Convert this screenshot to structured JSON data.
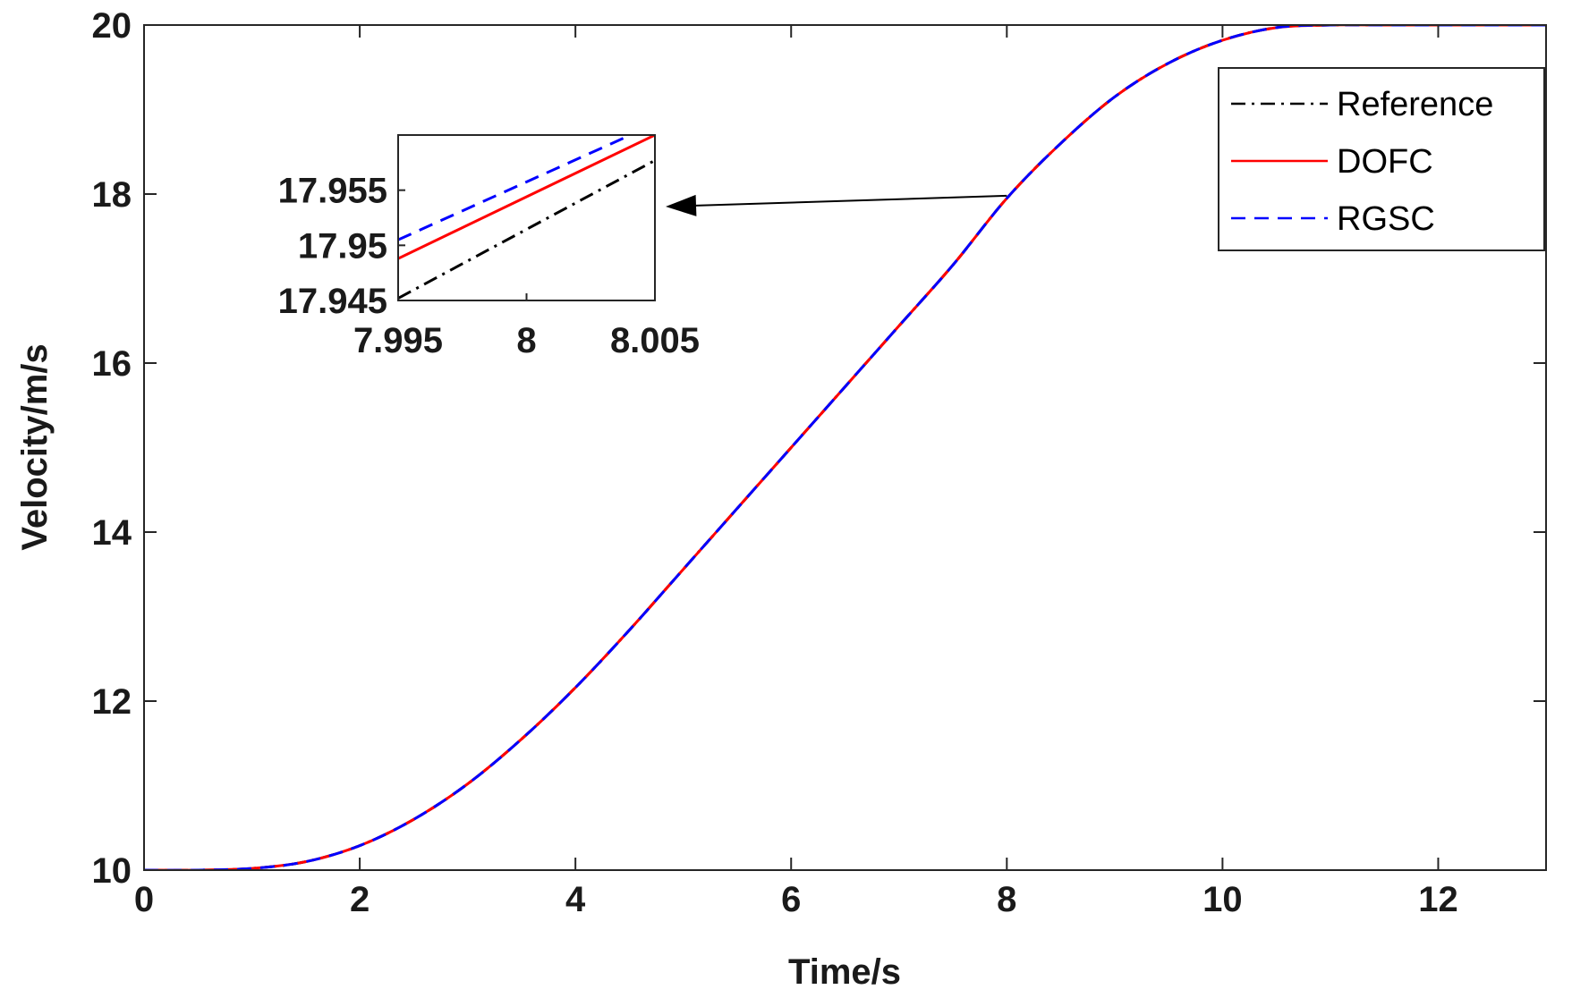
{
  "chart_data": {
    "type": "line",
    "xlabel": "Time/s",
    "ylabel": "Velocity/m/s",
    "xlim": [
      0,
      13
    ],
    "ylim": [
      10,
      20
    ],
    "xticks": [
      "0",
      "2",
      "4",
      "6",
      "8",
      "10",
      "12"
    ],
    "yticks": [
      "10",
      "12",
      "14",
      "16",
      "18",
      "20"
    ],
    "grid": false,
    "legend_position": "top-right",
    "series": [
      {
        "name": "Reference",
        "color": "#000000",
        "style": "dash-dot",
        "x": [
          0,
          0.5,
          1,
          1.5,
          2,
          2.5,
          3,
          3.5,
          4,
          4.5,
          5,
          5.5,
          6,
          6.5,
          7,
          7.5,
          8,
          8.5,
          9,
          9.5,
          10,
          10.5,
          11,
          11.5,
          12,
          12.5,
          13
        ],
        "y": [
          10,
          10,
          10.02,
          10.1,
          10.29,
          10.6,
          11.02,
          11.55,
          12.16,
          12.84,
          13.56,
          14.28,
          15.0,
          15.72,
          16.44,
          17.16,
          17.95,
          18.6,
          19.15,
          19.55,
          19.82,
          19.97,
          20,
          20,
          20,
          20,
          20
        ]
      },
      {
        "name": "DOFC",
        "color": "#ff0000",
        "style": "solid",
        "x": [
          0,
          0.5,
          1,
          1.5,
          2,
          2.5,
          3,
          3.5,
          4,
          4.5,
          5,
          5.5,
          6,
          6.5,
          7,
          7.5,
          8,
          8.5,
          9,
          9.5,
          10,
          10.5,
          11,
          11.5,
          12,
          12.5,
          13
        ],
        "y": [
          10,
          10,
          10.02,
          10.1,
          10.29,
          10.6,
          11.02,
          11.55,
          12.16,
          12.84,
          13.56,
          14.28,
          15.0,
          15.72,
          16.44,
          17.16,
          17.95,
          18.6,
          19.15,
          19.55,
          19.82,
          19.97,
          20,
          20,
          20,
          20,
          20
        ]
      },
      {
        "name": "RGSC",
        "color": "#0000ff",
        "style": "dashed",
        "x": [
          0,
          0.5,
          1,
          1.5,
          2,
          2.5,
          3,
          3.5,
          4,
          4.5,
          5,
          5.5,
          6,
          6.5,
          7,
          7.5,
          8,
          8.5,
          9,
          9.5,
          10,
          10.5,
          11,
          11.5,
          12,
          12.5,
          13
        ],
        "y": [
          10,
          10,
          10.02,
          10.1,
          10.29,
          10.6,
          11.02,
          11.55,
          12.16,
          12.84,
          13.56,
          14.28,
          15.0,
          15.72,
          16.44,
          17.16,
          17.95,
          18.6,
          19.15,
          19.55,
          19.82,
          19.97,
          20,
          20,
          20,
          20,
          20
        ]
      }
    ],
    "inset": {
      "xlim": [
        7.995,
        8.005
      ],
      "ylim": [
        17.945,
        17.96
      ],
      "xticks": [
        "7.995",
        "8",
        "8.005"
      ],
      "yticks": [
        "17.945",
        "17.95",
        "17.955"
      ],
      "series": [
        {
          "name": "Reference",
          "x": [
            7.995,
            8.005
          ],
          "y": [
            17.9452,
            17.9577
          ]
        },
        {
          "name": "DOFC",
          "x": [
            7.995,
            8.005
          ],
          "y": [
            17.9488,
            17.96
          ]
        },
        {
          "name": "RGSC",
          "x": [
            7.995,
            8.005
          ],
          "y": [
            17.9505,
            17.961
          ]
        }
      ],
      "arrow_from": [
        8.0,
        17.98
      ]
    }
  }
}
